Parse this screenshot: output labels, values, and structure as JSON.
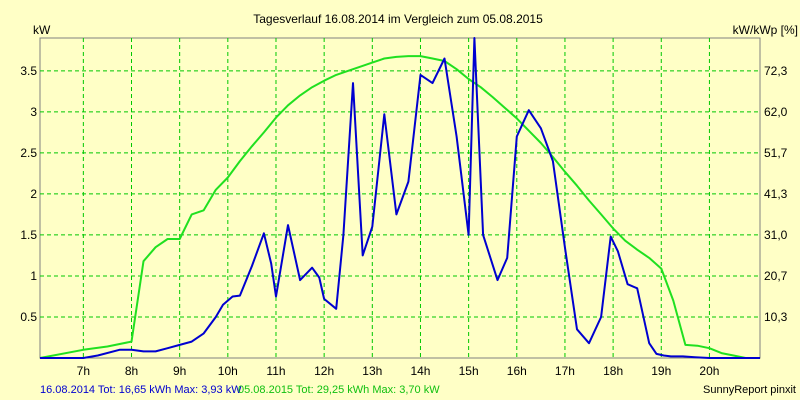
{
  "colors": {
    "background": "#ffffc6",
    "plot_border": "#808080",
    "grid": "#00c800",
    "series_2014": "#0000d0",
    "series_2015": "#20e020"
  },
  "chart_data": {
    "type": "line",
    "title": "Tagesverlauf 16.08.2014 im Vergleich zum 05.08.2015",
    "ylabel_left": "kW",
    "ylabel_right": "kW/kWp [%]",
    "x_unit": "hour",
    "xlim": [
      6.1,
      21.05
    ],
    "ylim": [
      0,
      3.9
    ],
    "x_ticks": [
      {
        "x": 7,
        "label": "7h"
      },
      {
        "x": 8,
        "label": "8h"
      },
      {
        "x": 9,
        "label": "9h"
      },
      {
        "x": 10,
        "label": "10h"
      },
      {
        "x": 11,
        "label": "11h"
      },
      {
        "x": 12,
        "label": "12h"
      },
      {
        "x": 13,
        "label": "13h"
      },
      {
        "x": 14,
        "label": "14h"
      },
      {
        "x": 15,
        "label": "15h"
      },
      {
        "x": 16,
        "label": "16h"
      },
      {
        "x": 17,
        "label": "17h"
      },
      {
        "x": 18,
        "label": "18h"
      },
      {
        "x": 19,
        "label": "19h"
      },
      {
        "x": 20,
        "label": "20h"
      }
    ],
    "y_ticks_left": [
      {
        "y": 0.5,
        "label": "0.5"
      },
      {
        "y": 1,
        "label": "1"
      },
      {
        "y": 1.5,
        "label": "1.5"
      },
      {
        "y": 2,
        "label": "2"
      },
      {
        "y": 2.5,
        "label": "2.5"
      },
      {
        "y": 3,
        "label": "3"
      },
      {
        "y": 3.5,
        "label": "3.5"
      }
    ],
    "y_ticks_right": [
      {
        "y": 0.5,
        "label": "10,3"
      },
      {
        "y": 1,
        "label": "20,7"
      },
      {
        "y": 1.5,
        "label": "31,0"
      },
      {
        "y": 2,
        "label": "41,3"
      },
      {
        "y": 2.5,
        "label": "51,7"
      },
      {
        "y": 3,
        "label": "62,0"
      },
      {
        "y": 3.5,
        "label": "72,3"
      }
    ],
    "grid": true,
    "series": [
      {
        "name": "16.08.2014",
        "color": "#0000d0",
        "x": [
          6.1,
          7,
          7.3,
          7.75,
          8.0,
          8.25,
          8.5,
          8.75,
          9.0,
          9.25,
          9.5,
          9.75,
          9.9,
          10.1,
          10.25,
          10.5,
          10.75,
          10.9,
          11.0,
          11.25,
          11.5,
          11.75,
          11.9,
          12.0,
          12.25,
          12.4,
          12.6,
          12.8,
          13.0,
          13.25,
          13.5,
          13.75,
          14.0,
          14.25,
          14.5,
          14.75,
          15.0,
          15.12,
          15.3,
          15.6,
          15.8,
          16.0,
          16.25,
          16.5,
          16.75,
          17.0,
          17.25,
          17.5,
          17.75,
          17.95,
          18.1,
          18.3,
          18.5,
          18.75,
          18.9,
          19.05,
          19.2,
          19.45,
          19.7,
          20.0,
          20.25,
          20.5,
          20.75,
          21.05
        ],
        "y": [
          0,
          0,
          0.03,
          0.1,
          0.1,
          0.08,
          0.08,
          0.12,
          0.16,
          0.2,
          0.3,
          0.5,
          0.65,
          0.75,
          0.76,
          1.12,
          1.52,
          1.15,
          0.75,
          1.62,
          0.95,
          1.1,
          0.98,
          0.72,
          0.6,
          1.5,
          3.35,
          1.25,
          1.6,
          2.97,
          1.75,
          2.15,
          3.45,
          3.35,
          3.65,
          2.7,
          1.5,
          3.95,
          1.5,
          0.95,
          1.22,
          2.7,
          3.02,
          2.8,
          2.4,
          1.35,
          0.35,
          0.18,
          0.5,
          1.48,
          1.3,
          0.9,
          0.85,
          0.18,
          0.05,
          0.03,
          0.02,
          0.02,
          0.01,
          0,
          0,
          0,
          0,
          0
        ]
      },
      {
        "name": "05.08.2015",
        "color": "#20e020",
        "x": [
          6.1,
          7,
          7.5,
          8.0,
          8.25,
          8.5,
          8.75,
          9.0,
          9.25,
          9.5,
          9.75,
          10.0,
          10.25,
          10.5,
          10.75,
          11.0,
          11.25,
          11.5,
          11.75,
          12.0,
          12.25,
          12.5,
          12.75,
          13.0,
          13.25,
          13.5,
          13.75,
          14.0,
          14.25,
          14.5,
          14.75,
          15.0,
          15.25,
          15.5,
          15.75,
          16.0,
          16.25,
          16.5,
          16.75,
          17.0,
          17.25,
          17.5,
          17.75,
          18.0,
          18.25,
          18.5,
          18.75,
          19.0,
          19.25,
          19.5,
          19.75,
          20.0,
          20.25,
          20.5,
          20.75,
          21.05
        ],
        "y": [
          0,
          0.1,
          0.14,
          0.2,
          1.18,
          1.35,
          1.45,
          1.45,
          1.75,
          1.8,
          2.05,
          2.2,
          2.4,
          2.58,
          2.75,
          2.93,
          3.08,
          3.2,
          3.3,
          3.38,
          3.45,
          3.5,
          3.55,
          3.6,
          3.65,
          3.67,
          3.68,
          3.68,
          3.65,
          3.62,
          3.52,
          3.4,
          3.3,
          3.18,
          3.05,
          2.92,
          2.77,
          2.62,
          2.45,
          2.27,
          2.1,
          1.92,
          1.75,
          1.58,
          1.43,
          1.32,
          1.22,
          1.09,
          0.7,
          0.16,
          0.15,
          0.12,
          0.06,
          0.03,
          0,
          0
        ]
      }
    ]
  },
  "footer": {
    "legend_2014": "16.08.2014 Tot: 16,65 kWh Max: 3,93 kW",
    "legend_2015": "05.08.2015 Tot: 29,25 kWh Max: 3,70 kW",
    "credit": "SunnyReport pinxit"
  }
}
